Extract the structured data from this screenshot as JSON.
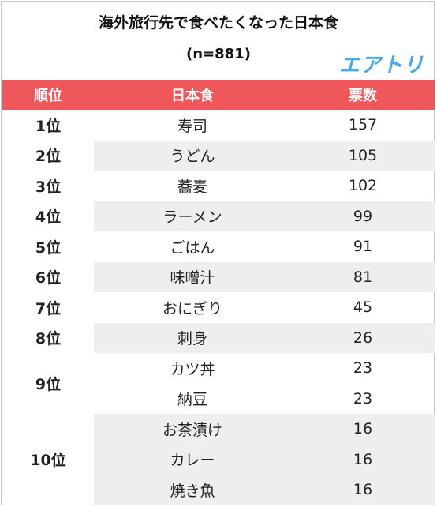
{
  "title": "海外旅行先で食べたくなった日本食",
  "subtitle": "(n=881)",
  "logo_text": "エアトリ",
  "colors": {
    "header_bg": "#f0575a",
    "rank_text": "#e8474b",
    "logo": "#4aa8ec",
    "row_shade": "#eeeeee"
  },
  "table": {
    "headers": {
      "rank": "順位",
      "food": "日本食",
      "votes": "票数"
    },
    "groups": [
      {
        "rank": "1位",
        "items": [
          {
            "food": "寿司",
            "votes": "157"
          }
        ]
      },
      {
        "rank": "2位",
        "items": [
          {
            "food": "うどん",
            "votes": "105"
          }
        ]
      },
      {
        "rank": "3位",
        "items": [
          {
            "food": "蕎麦",
            "votes": "102"
          }
        ]
      },
      {
        "rank": "4位",
        "items": [
          {
            "food": "ラーメン",
            "votes": "99"
          }
        ]
      },
      {
        "rank": "5位",
        "items": [
          {
            "food": "ごはん",
            "votes": "91"
          }
        ]
      },
      {
        "rank": "6位",
        "items": [
          {
            "food": "味噌汁",
            "votes": "81"
          }
        ]
      },
      {
        "rank": "7位",
        "items": [
          {
            "food": "おにぎり",
            "votes": "45"
          }
        ]
      },
      {
        "rank": "8位",
        "items": [
          {
            "food": "刺身",
            "votes": "26"
          }
        ]
      },
      {
        "rank": "9位",
        "items": [
          {
            "food": "カツ丼",
            "votes": "23"
          },
          {
            "food": "納豆",
            "votes": "23"
          }
        ]
      },
      {
        "rank": "10位",
        "items": [
          {
            "food": "お茶漬け",
            "votes": "16"
          },
          {
            "food": "カレー",
            "votes": "16"
          },
          {
            "food": "焼き魚",
            "votes": "16"
          }
        ]
      }
    ]
  }
}
